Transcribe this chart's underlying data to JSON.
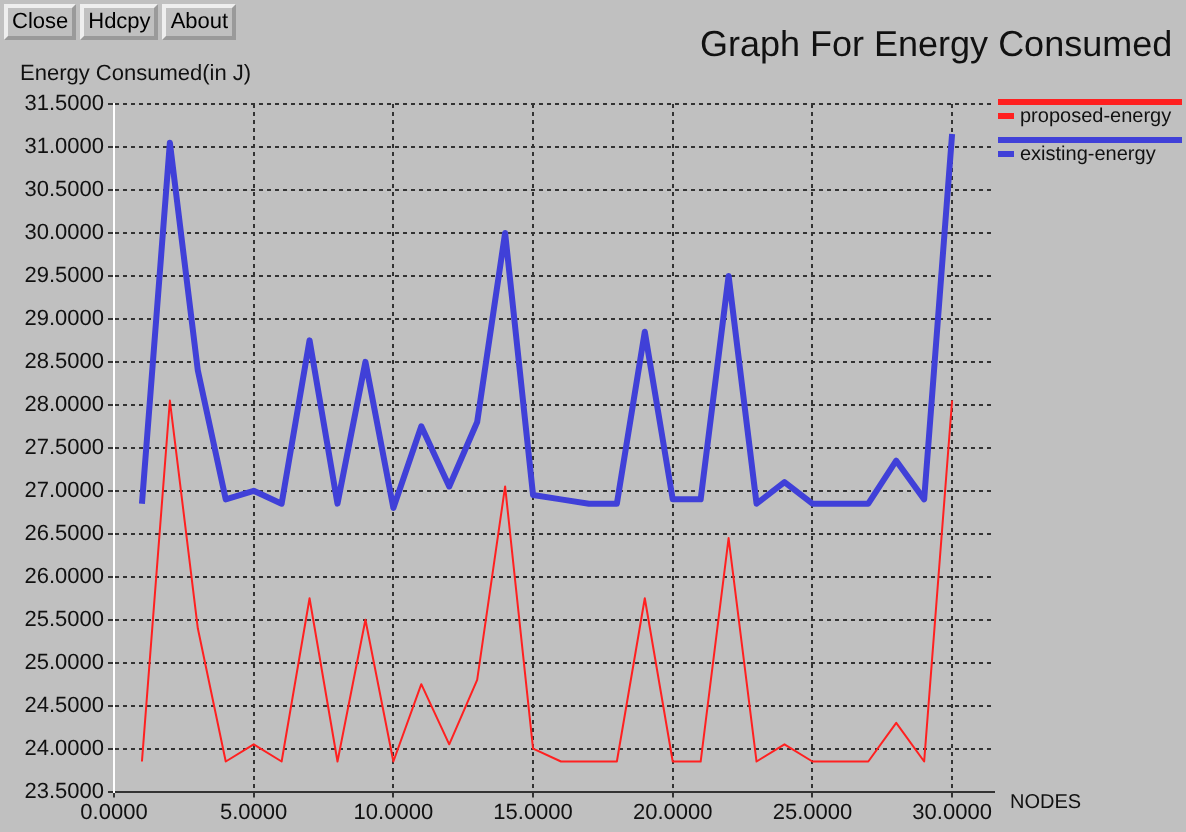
{
  "chart_data": {
    "type": "line",
    "title": "Graph For Energy Consumed",
    "xlabel": "NODES",
    "ylabel": "Energy Consumed(in J)",
    "x": [
      1,
      2,
      3,
      4,
      5,
      6,
      7,
      8,
      9,
      10,
      11,
      12,
      13,
      14,
      15,
      16,
      17,
      18,
      19,
      20,
      21,
      22,
      23,
      24,
      25,
      26,
      27,
      28,
      29,
      30
    ],
    "series": [
      {
        "name": "proposed-energy",
        "color": "#ff2020",
        "values": [
          23.85,
          28.05,
          25.4,
          23.85,
          24.05,
          23.85,
          25.75,
          23.85,
          25.5,
          23.85,
          24.75,
          24.05,
          24.8,
          27.05,
          24.0,
          23.85,
          23.85,
          23.85,
          25.75,
          23.85,
          23.85,
          26.45,
          23.85,
          24.05,
          23.85,
          23.85,
          23.85,
          24.3,
          23.85,
          28.05
        ]
      },
      {
        "name": "existing-energy",
        "color": "#4040d8",
        "values": [
          26.85,
          31.05,
          28.4,
          26.9,
          27.0,
          26.85,
          28.75,
          26.85,
          28.5,
          26.8,
          27.75,
          27.05,
          27.8,
          30.0,
          26.95,
          26.9,
          26.85,
          26.85,
          28.85,
          26.9,
          26.9,
          29.5,
          26.85,
          27.1,
          26.85,
          26.85,
          26.85,
          27.35,
          26.9,
          31.15
        ]
      }
    ],
    "xlim": [
      0,
      31.5
    ],
    "xticks": [
      {
        "value": 0,
        "label": "0.0000"
      },
      {
        "value": 5,
        "label": "5.0000"
      },
      {
        "value": 10,
        "label": "10.0000"
      },
      {
        "value": 15,
        "label": "15.0000"
      },
      {
        "value": 20,
        "label": "20.0000"
      },
      {
        "value": 25,
        "label": "25.0000"
      },
      {
        "value": 30,
        "label": "30.0000"
      }
    ],
    "ylim": [
      23.5,
      31.5
    ],
    "yticks": [
      {
        "value": 23.5,
        "label": "23.5000"
      },
      {
        "value": 24,
        "label": "24.0000"
      },
      {
        "value": 24.5,
        "label": "24.5000"
      },
      {
        "value": 25,
        "label": "25.0000"
      },
      {
        "value": 25.5,
        "label": "25.5000"
      },
      {
        "value": 26,
        "label": "26.0000"
      },
      {
        "value": 26.5,
        "label": "26.5000"
      },
      {
        "value": 27,
        "label": "27.0000"
      },
      {
        "value": 27.5,
        "label": "27.5000"
      },
      {
        "value": 28,
        "label": "28.0000"
      },
      {
        "value": 28.5,
        "label": "28.5000"
      },
      {
        "value": 29,
        "label": "29.0000"
      },
      {
        "value": 29.5,
        "label": "29.5000"
      },
      {
        "value": 30,
        "label": "30.0000"
      },
      {
        "value": 30.5,
        "label": "30.5000"
      },
      {
        "value": 31,
        "label": "31.0000"
      },
      {
        "value": 31.5,
        "label": "31.5000"
      }
    ],
    "annotations": [
      "Close",
      "Hdcpy",
      "About"
    ],
    "grid": true,
    "legend": "top right",
    "marker": "none",
    "line_style": "solid"
  }
}
